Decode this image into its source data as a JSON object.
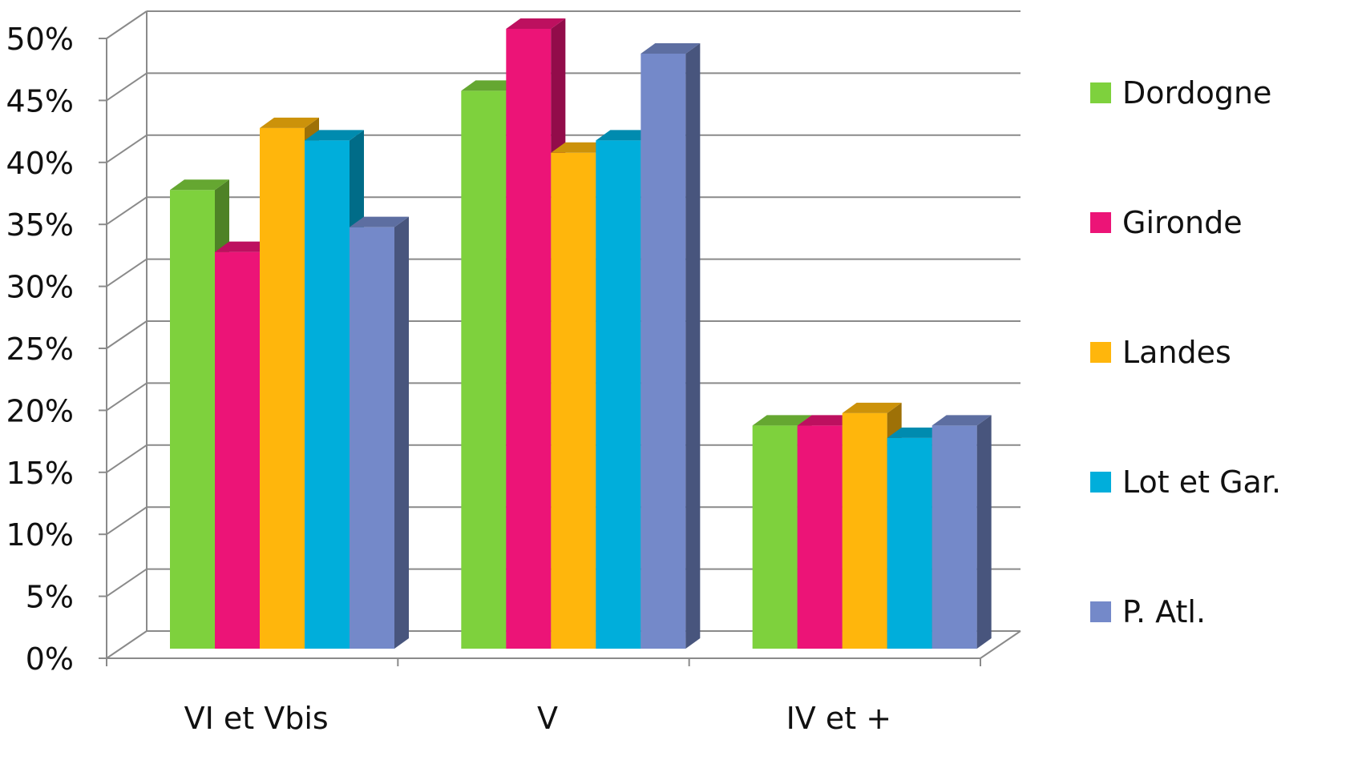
{
  "chart_data": {
    "type": "bar",
    "title": "",
    "xlabel": "",
    "ylabel": "",
    "categories": [
      "VI et Vbis",
      "V",
      "IV et +"
    ],
    "ylim": [
      0,
      50
    ],
    "y_ticks": [
      "0%",
      "5%",
      "10%",
      "15%",
      "20%",
      "25%",
      "30%",
      "35%",
      "40%",
      "45%",
      "50%"
    ],
    "grid": true,
    "legend_position": "right",
    "series": [
      {
        "name": "Dordogne",
        "color": "#7ED13D",
        "values": [
          37,
          45,
          18
        ]
      },
      {
        "name": "Gironde",
        "color": "#EC1477",
        "values": [
          32,
          50,
          18
        ]
      },
      {
        "name": "Landes",
        "color": "#FFB60C",
        "values": [
          42,
          40,
          19
        ]
      },
      {
        "name": "Lot et Gar.",
        "color": "#00AEDB",
        "values": [
          41,
          41,
          17
        ]
      },
      {
        "name": "P. Atl.",
        "color": "#7489C9",
        "values": [
          34,
          48,
          18
        ]
      }
    ]
  }
}
